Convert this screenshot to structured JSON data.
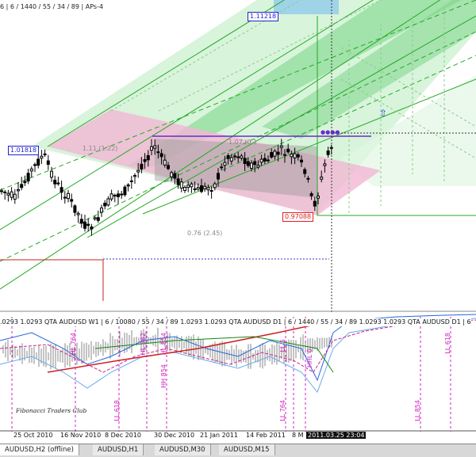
{
  "header_text": "6 | 6 / 1440 / 55 / 34 / 89 | APs-4",
  "price_labels": {
    "top": "1.11218",
    "left": "1.01818",
    "low": "0.97088"
  },
  "fib_labels": {
    "upper": "1.11 (1.22)",
    "middle": "1.07 (0.1",
    "lower": "0.76 (2.45)"
  },
  "indicator_header": ".0293 1.0293 QTA AUDUSD W1 | 6 / 10080 / 55 / 34 / 89 1.0293 1.0293 QTA AUDUSD D1 | 6 / 1440 / 55 / 34 / 89 1.0293 1.0293 QTA AUDUSD D1 | 6",
  "watermark": "Fibonacci Traders Club",
  "indicator_vlabels": [
    "HL 764",
    "HL 382",
    "HL 854",
    "LL 618",
    "HH 854",
    "LL 5",
    "LL 764",
    "HHL 0",
    "LL 854",
    "LL 618"
  ],
  "dates": [
    "25 Oct 2010",
    "16 Nov 2010",
    "8 Dec 2010",
    "30 Dec 2010",
    "21 Jan 2011",
    "14 Feb 2011",
    "8 M"
  ],
  "crosshair_time": "2011.03.25 23:04",
  "tabs": [
    "AUDUSD,H2 (offline)",
    "AUDUSD,H1",
    "AUDUSD,M30",
    "AUDUSD,M15"
  ],
  "colors": {
    "pink_channel": "#f2b6d4",
    "green_channel": "#7ed68a",
    "green_line": "#22aa22",
    "purple_line": "#6a2cc9",
    "fib_box": "#9fd3e8"
  },
  "icons": {
    "up_arrow": "up-arrow-icon"
  }
}
